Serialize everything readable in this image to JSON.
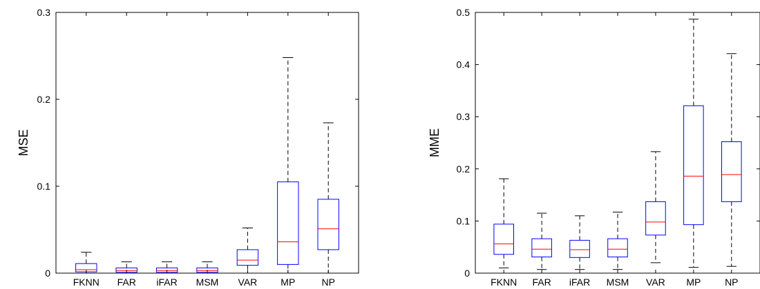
{
  "chart_data": [
    {
      "type": "box",
      "ylabel": "MSE",
      "ylim": [
        0,
        0.3
      ],
      "yticks": [
        0,
        0.1,
        0.2,
        0.3
      ],
      "ytick_labels": [
        "0",
        "0.1",
        "0.2",
        "0.3"
      ],
      "categories": [
        "FKNN",
        "FAR",
        "iFAR",
        "MSM",
        "VAR",
        "MP",
        "NP"
      ],
      "boxes": [
        {
          "whisker_low": 0.0,
          "q1": 0.0015,
          "median": 0.004,
          "q3": 0.011,
          "whisker_high": 0.024
        },
        {
          "whisker_low": 0.0,
          "q1": 0.001,
          "median": 0.003,
          "q3": 0.006,
          "whisker_high": 0.013
        },
        {
          "whisker_low": 0.0,
          "q1": 0.001,
          "median": 0.003,
          "q3": 0.006,
          "whisker_high": 0.013
        },
        {
          "whisker_low": 0.0,
          "q1": 0.001,
          "median": 0.003,
          "q3": 0.006,
          "whisker_high": 0.013
        },
        {
          "whisker_low": 0.0,
          "q1": 0.009,
          "median": 0.015,
          "q3": 0.027,
          "whisker_high": 0.052
        },
        {
          "whisker_low": 0.0,
          "q1": 0.01,
          "median": 0.036,
          "q3": 0.105,
          "whisker_high": 0.248
        },
        {
          "whisker_low": 0.0,
          "q1": 0.027,
          "median": 0.051,
          "q3": 0.085,
          "whisker_high": 0.173
        }
      ]
    },
    {
      "type": "box",
      "ylabel": "MME",
      "ylim": [
        0,
        0.5
      ],
      "yticks": [
        0,
        0.1,
        0.2,
        0.3,
        0.4,
        0.5
      ],
      "ytick_labels": [
        "0",
        "0.1",
        "0.2",
        "0.3",
        "0.4",
        "0.5"
      ],
      "categories": [
        "FKNN",
        "FAR",
        "iFAR",
        "MSM",
        "VAR",
        "MP",
        "NP"
      ],
      "boxes": [
        {
          "whisker_low": 0.01,
          "q1": 0.036,
          "median": 0.056,
          "q3": 0.094,
          "whisker_high": 0.181
        },
        {
          "whisker_low": 0.007,
          "q1": 0.031,
          "median": 0.046,
          "q3": 0.066,
          "whisker_high": 0.115
        },
        {
          "whisker_low": 0.007,
          "q1": 0.03,
          "median": 0.045,
          "q3": 0.063,
          "whisker_high": 0.11
        },
        {
          "whisker_low": 0.007,
          "q1": 0.031,
          "median": 0.046,
          "q3": 0.066,
          "whisker_high": 0.117
        },
        {
          "whisker_low": 0.02,
          "q1": 0.073,
          "median": 0.098,
          "q3": 0.137,
          "whisker_high": 0.233
        },
        {
          "whisker_low": 0.011,
          "q1": 0.093,
          "median": 0.186,
          "q3": 0.321,
          "whisker_high": 0.487
        },
        {
          "whisker_low": 0.013,
          "q1": 0.137,
          "median": 0.189,
          "q3": 0.252,
          "whisker_high": 0.421
        }
      ]
    }
  ],
  "colors": {
    "box": "#0000ff",
    "median": "#ff0000",
    "whisker": "#000000",
    "axes": "#000000"
  }
}
